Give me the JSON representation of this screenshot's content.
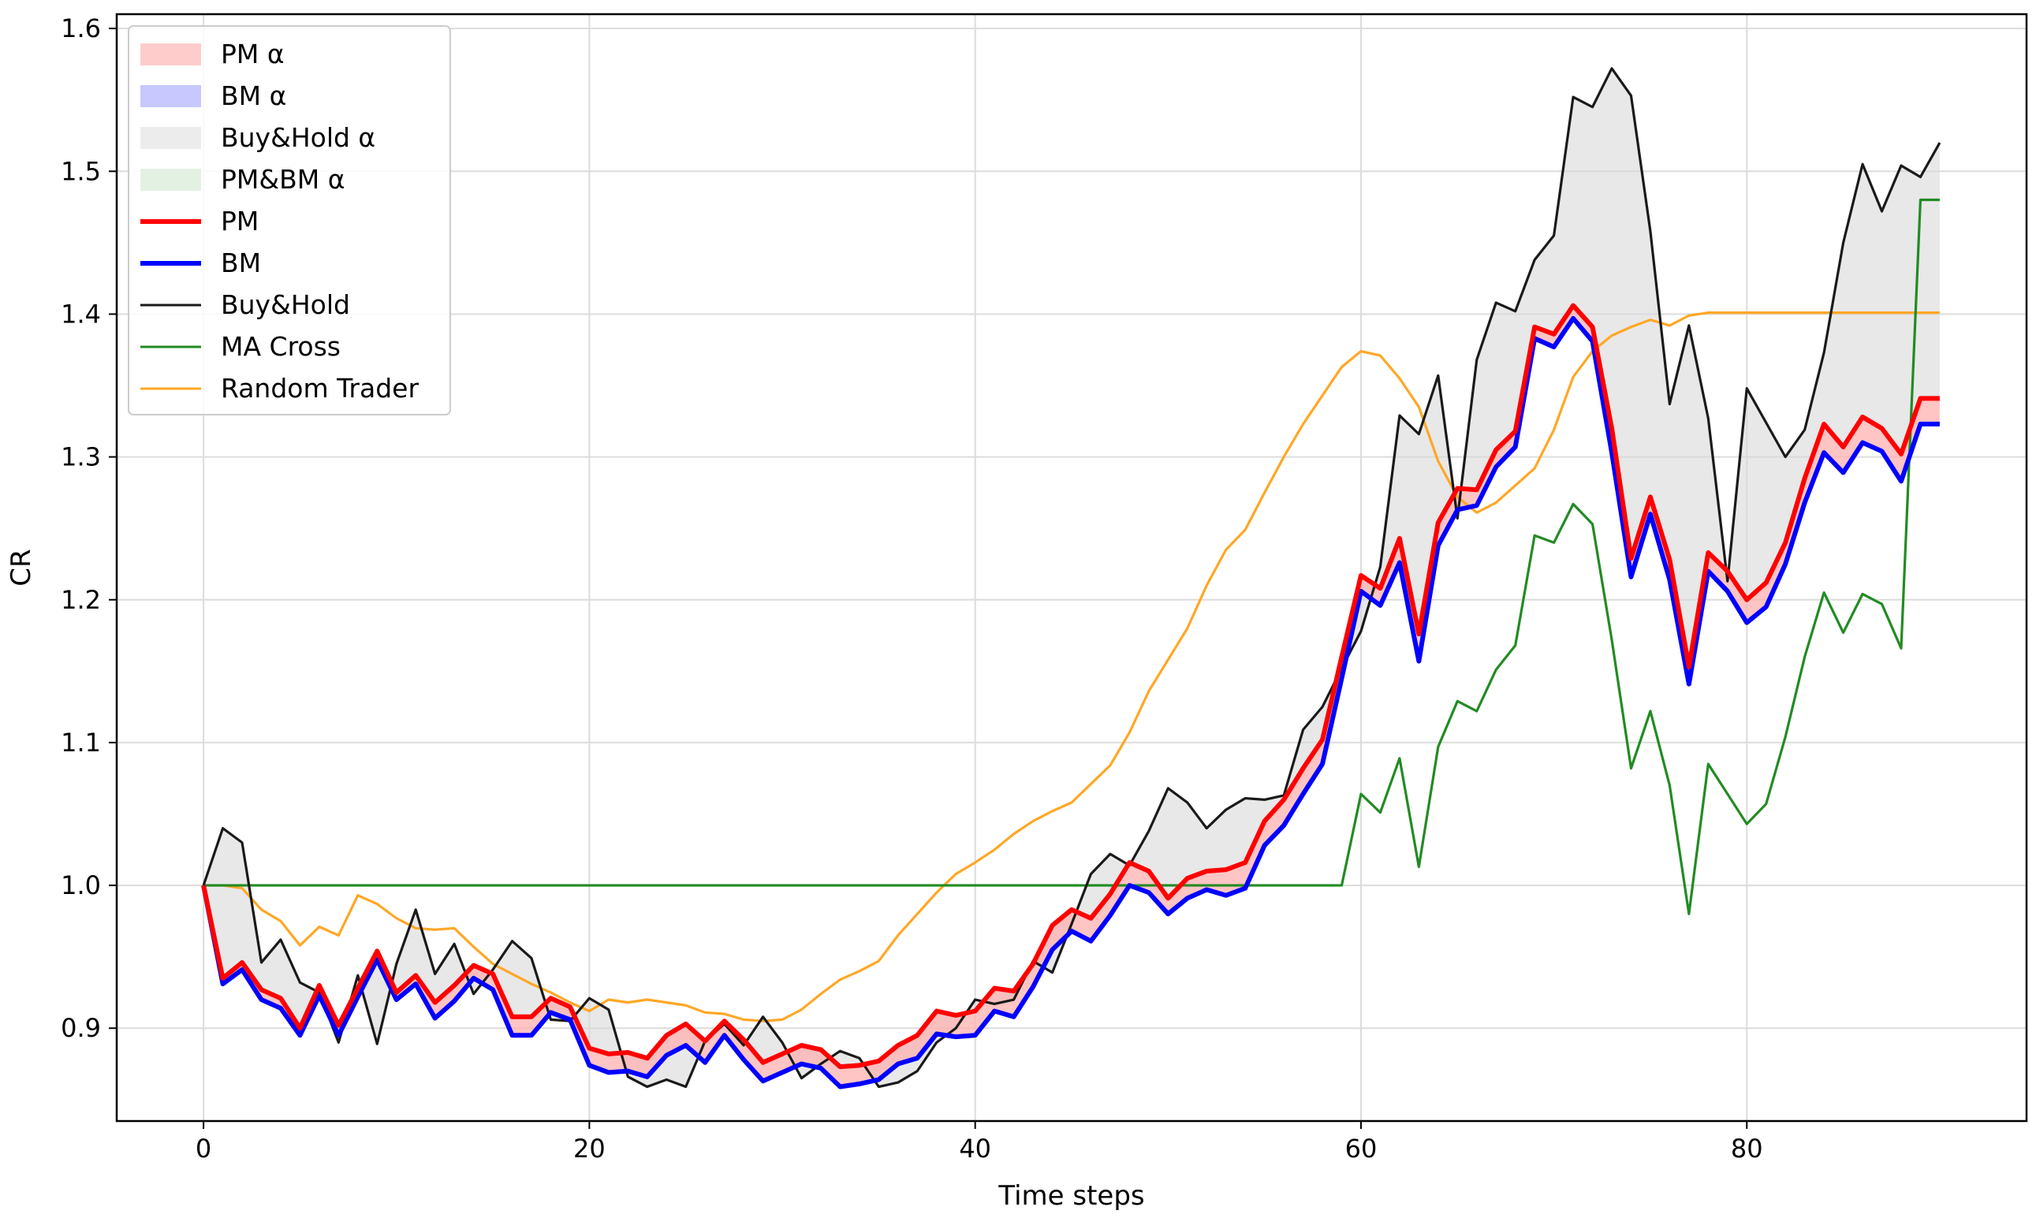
{
  "chart_data": {
    "type": "line",
    "title": "",
    "xlabel": "Time steps",
    "ylabel": "CR",
    "xlim": [
      -4.5,
      94.5
    ],
    "ylim": [
      0.835,
      1.61
    ],
    "xticks": [
      0,
      20,
      40,
      60,
      80
    ],
    "yticks": [
      0.9,
      1.0,
      1.1,
      1.2,
      1.3,
      1.4,
      1.5,
      1.6
    ],
    "xtick_labels": [
      "0",
      "20",
      "40",
      "60",
      "80"
    ],
    "ytick_labels": [
      "0.9",
      "1.0",
      "1.1",
      "1.2",
      "1.3",
      "1.4",
      "1.5",
      "1.6"
    ],
    "grid": true,
    "legend_placement": "top-left",
    "legend": [
      {
        "label": "PM α",
        "kind": "fill",
        "color": "#ffcccc"
      },
      {
        "label": "BM α",
        "kind": "fill",
        "color": "#c8c8ff"
      },
      {
        "label": "Buy&Hold α",
        "kind": "fill",
        "color": "#ececec"
      },
      {
        "label": "PM&BM α",
        "kind": "fill",
        "color": "#e3f1e3"
      },
      {
        "label": "PM",
        "kind": "line",
        "color": "#ff0000",
        "width": 6
      },
      {
        "label": "BM",
        "kind": "line",
        "color": "#0000ff",
        "width": 6
      },
      {
        "label": "Buy&Hold",
        "kind": "line",
        "color": "#1a1a1a",
        "width": 3
      },
      {
        "label": "MA Cross",
        "kind": "line",
        "color": "#228b22",
        "width": 3
      },
      {
        "label": "Random Trader",
        "kind": "line",
        "color": "#ffa726",
        "width": 3
      }
    ],
    "series": [
      {
        "name": "PM",
        "color": "#ff0000",
        "values": [
          1.0,
          0.935,
          0.946,
          0.927,
          0.921,
          0.9,
          0.93,
          0.902,
          0.928,
          0.954,
          0.925,
          0.937,
          0.918,
          0.93,
          0.944,
          0.938,
          0.908,
          0.908,
          0.921,
          0.915,
          0.886,
          0.882,
          0.883,
          0.879,
          0.895,
          0.903,
          0.891,
          0.905,
          0.892,
          0.876,
          0.882,
          0.888,
          0.885,
          0.873,
          0.874,
          0.877,
          0.888,
          0.895,
          0.912,
          0.909,
          0.912,
          0.928,
          0.926,
          0.945,
          0.972,
          0.983,
          0.977,
          0.994,
          1.016,
          1.01,
          0.991,
          1.005,
          1.01,
          1.011,
          1.016,
          1.045,
          1.06,
          1.082,
          1.102,
          1.16,
          1.217,
          1.208,
          1.243,
          1.176,
          1.254,
          1.278,
          1.277,
          1.305,
          1.318,
          1.391,
          1.386,
          1.406,
          1.391,
          1.32,
          1.229,
          1.272,
          1.228,
          1.153,
          1.233,
          1.22,
          1.2,
          1.212,
          1.24,
          1.285,
          1.323,
          1.307,
          1.328,
          1.32,
          1.302,
          1.341,
          1.341
        ]
      },
      {
        "name": "BM",
        "color": "#0000ff",
        "values": [
          1.0,
          0.931,
          0.941,
          0.92,
          0.914,
          0.895,
          0.923,
          0.895,
          0.922,
          0.948,
          0.92,
          0.931,
          0.907,
          0.919,
          0.935,
          0.927,
          0.895,
          0.895,
          0.911,
          0.906,
          0.874,
          0.869,
          0.87,
          0.866,
          0.881,
          0.888,
          0.876,
          0.895,
          0.878,
          0.863,
          0.869,
          0.875,
          0.872,
          0.859,
          0.861,
          0.864,
          0.875,
          0.879,
          0.896,
          0.894,
          0.895,
          0.912,
          0.908,
          0.929,
          0.955,
          0.968,
          0.961,
          0.979,
          1.0,
          0.995,
          0.98,
          0.991,
          0.997,
          0.993,
          0.998,
          1.028,
          1.042,
          1.064,
          1.085,
          1.145,
          1.206,
          1.196,
          1.226,
          1.157,
          1.238,
          1.263,
          1.266,
          1.293,
          1.307,
          1.383,
          1.377,
          1.397,
          1.381,
          1.303,
          1.216,
          1.26,
          1.214,
          1.141,
          1.22,
          1.206,
          1.184,
          1.195,
          1.225,
          1.268,
          1.303,
          1.289,
          1.31,
          1.304,
          1.283,
          1.323,
          1.323
        ]
      },
      {
        "name": "Buy&Hold",
        "color": "#1a1a1a",
        "values": [
          1.0,
          1.04,
          1.03,
          0.946,
          0.962,
          0.932,
          0.925,
          0.89,
          0.937,
          0.889,
          0.945,
          0.983,
          0.938,
          0.959,
          0.924,
          0.941,
          0.961,
          0.949,
          0.906,
          0.905,
          0.921,
          0.913,
          0.866,
          0.859,
          0.864,
          0.859,
          0.891,
          0.903,
          0.888,
          0.908,
          0.89,
          0.865,
          0.875,
          0.884,
          0.879,
          0.859,
          0.862,
          0.87,
          0.89,
          0.9,
          0.92,
          0.917,
          0.92,
          0.947,
          0.939,
          0.973,
          1.008,
          1.022,
          1.014,
          1.038,
          1.068,
          1.058,
          1.04,
          1.053,
          1.061,
          1.06,
          1.063,
          1.109,
          1.125,
          1.152,
          1.178,
          1.223,
          1.329,
          1.316,
          1.357,
          1.257,
          1.368,
          1.408,
          1.402,
          1.438,
          1.455,
          1.552,
          1.545,
          1.572,
          1.553,
          1.458,
          1.337,
          1.392,
          1.327,
          1.213,
          1.348,
          1.324,
          1.3,
          1.319,
          1.373,
          1.45,
          1.505,
          1.472,
          1.504,
          1.496,
          1.52
        ]
      },
      {
        "name": "MA Cross",
        "color": "#228b22",
        "values": [
          1.0,
          1.0,
          1.0,
          1.0,
          1.0,
          1.0,
          1.0,
          1.0,
          1.0,
          1.0,
          1.0,
          1.0,
          1.0,
          1.0,
          1.0,
          1.0,
          1.0,
          1.0,
          1.0,
          1.0,
          1.0,
          1.0,
          1.0,
          1.0,
          1.0,
          1.0,
          1.0,
          1.0,
          1.0,
          1.0,
          1.0,
          1.0,
          1.0,
          1.0,
          1.0,
          1.0,
          1.0,
          1.0,
          1.0,
          1.0,
          1.0,
          1.0,
          1.0,
          1.0,
          1.0,
          1.0,
          1.0,
          1.0,
          1.0,
          1.0,
          1.0,
          1.0,
          1.0,
          1.0,
          1.0,
          1.0,
          1.0,
          1.0,
          1.0,
          1.0,
          1.064,
          1.051,
          1.089,
          1.013,
          1.097,
          1.129,
          1.122,
          1.151,
          1.168,
          1.245,
          1.24,
          1.267,
          1.253,
          1.172,
          1.082,
          1.122,
          1.07,
          0.98,
          1.085,
          1.064,
          1.043,
          1.057,
          1.104,
          1.16,
          1.205,
          1.177,
          1.204,
          1.197,
          1.166,
          1.48,
          1.48
        ]
      },
      {
        "name": "Random Trader",
        "color": "#ffa726",
        "values": [
          1.0,
          1.0,
          0.998,
          0.983,
          0.975,
          0.958,
          0.971,
          0.965,
          0.993,
          0.987,
          0.977,
          0.97,
          0.969,
          0.97,
          0.957,
          0.945,
          0.938,
          0.931,
          0.925,
          0.918,
          0.912,
          0.92,
          0.918,
          0.92,
          0.918,
          0.916,
          0.911,
          0.91,
          0.906,
          0.905,
          0.906,
          0.913,
          0.924,
          0.934,
          0.94,
          0.947,
          0.965,
          0.98,
          0.995,
          1.008,
          1.016,
          1.025,
          1.036,
          1.045,
          1.052,
          1.058,
          1.071,
          1.084,
          1.107,
          1.136,
          1.158,
          1.18,
          1.21,
          1.235,
          1.249,
          1.275,
          1.3,
          1.323,
          1.343,
          1.363,
          1.374,
          1.371,
          1.355,
          1.335,
          1.297,
          1.272,
          1.261,
          1.268,
          1.28,
          1.292,
          1.319,
          1.356,
          1.374,
          1.385,
          1.391,
          1.396,
          1.392,
          1.399,
          1.401,
          1.401,
          1.401,
          1.401,
          1.401,
          1.401,
          1.401,
          1.401,
          1.401,
          1.401,
          1.401,
          1.401,
          1.401
        ]
      }
    ]
  }
}
